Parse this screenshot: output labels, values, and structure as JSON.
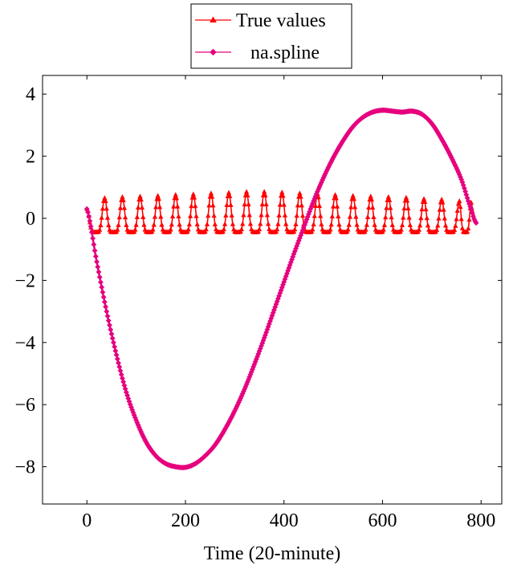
{
  "chart_data": {
    "type": "line",
    "title": "",
    "xlabel": "Time (20-minute)",
    "ylabel": "",
    "xlim": [
      -90,
      842
    ],
    "ylim": [
      -9.2,
      4.6
    ],
    "xticks": [
      0,
      200,
      400,
      600,
      800
    ],
    "yticks": [
      -8,
      -6,
      -4,
      -2,
      0,
      2,
      4
    ],
    "xtick_labels": [
      "0",
      "200",
      "400",
      "600",
      "800"
    ],
    "ytick_labels": [
      "−8",
      "−6",
      "−4",
      "−2",
      "0",
      "2",
      "4"
    ],
    "grid": false,
    "legend_position": "top-center",
    "series": [
      {
        "name": "True values",
        "color": "#ff0000",
        "marker": "triangle",
        "x_start": 0,
        "x_end": 790,
        "period": 36,
        "peak_x": [
          0,
          36,
          72,
          108,
          144,
          180,
          216,
          252,
          288,
          324,
          360,
          396,
          432,
          468,
          504,
          540,
          576,
          612,
          648,
          684,
          720,
          756,
          780
        ],
        "peak_y": [
          0.3,
          0.65,
          0.68,
          0.7,
          0.72,
          0.75,
          0.77,
          0.8,
          0.82,
          0.85,
          0.85,
          0.83,
          0.8,
          0.78,
          0.75,
          0.72,
          0.7,
          0.68,
          0.66,
          0.62,
          0.6,
          0.55,
          0.5
        ],
        "trough_y": -0.45,
        "end_y": -0.15
      },
      {
        "name": "na.spline",
        "color": "#e6007e",
        "marker": "diamond",
        "x": [
          0,
          20,
          40,
          60,
          80,
          100,
          120,
          140,
          160,
          180,
          200,
          220,
          240,
          260,
          280,
          300,
          320,
          340,
          360,
          380,
          400,
          420,
          440,
          460,
          480,
          500,
          520,
          540,
          560,
          580,
          600,
          620,
          640,
          660,
          680,
          700,
          720,
          740,
          760,
          780,
          790
        ],
        "y": [
          0.3,
          -1.4,
          -3.0,
          -4.4,
          -5.6,
          -6.5,
          -7.2,
          -7.65,
          -7.9,
          -8.0,
          -8.02,
          -7.9,
          -7.65,
          -7.3,
          -6.8,
          -6.2,
          -5.5,
          -4.7,
          -3.85,
          -2.95,
          -2.05,
          -1.15,
          -0.3,
          0.55,
          1.3,
          1.95,
          2.5,
          2.95,
          3.25,
          3.42,
          3.48,
          3.45,
          3.42,
          3.45,
          3.35,
          3.05,
          2.55,
          1.95,
          1.25,
          0.3,
          -0.15
        ]
      }
    ]
  }
}
